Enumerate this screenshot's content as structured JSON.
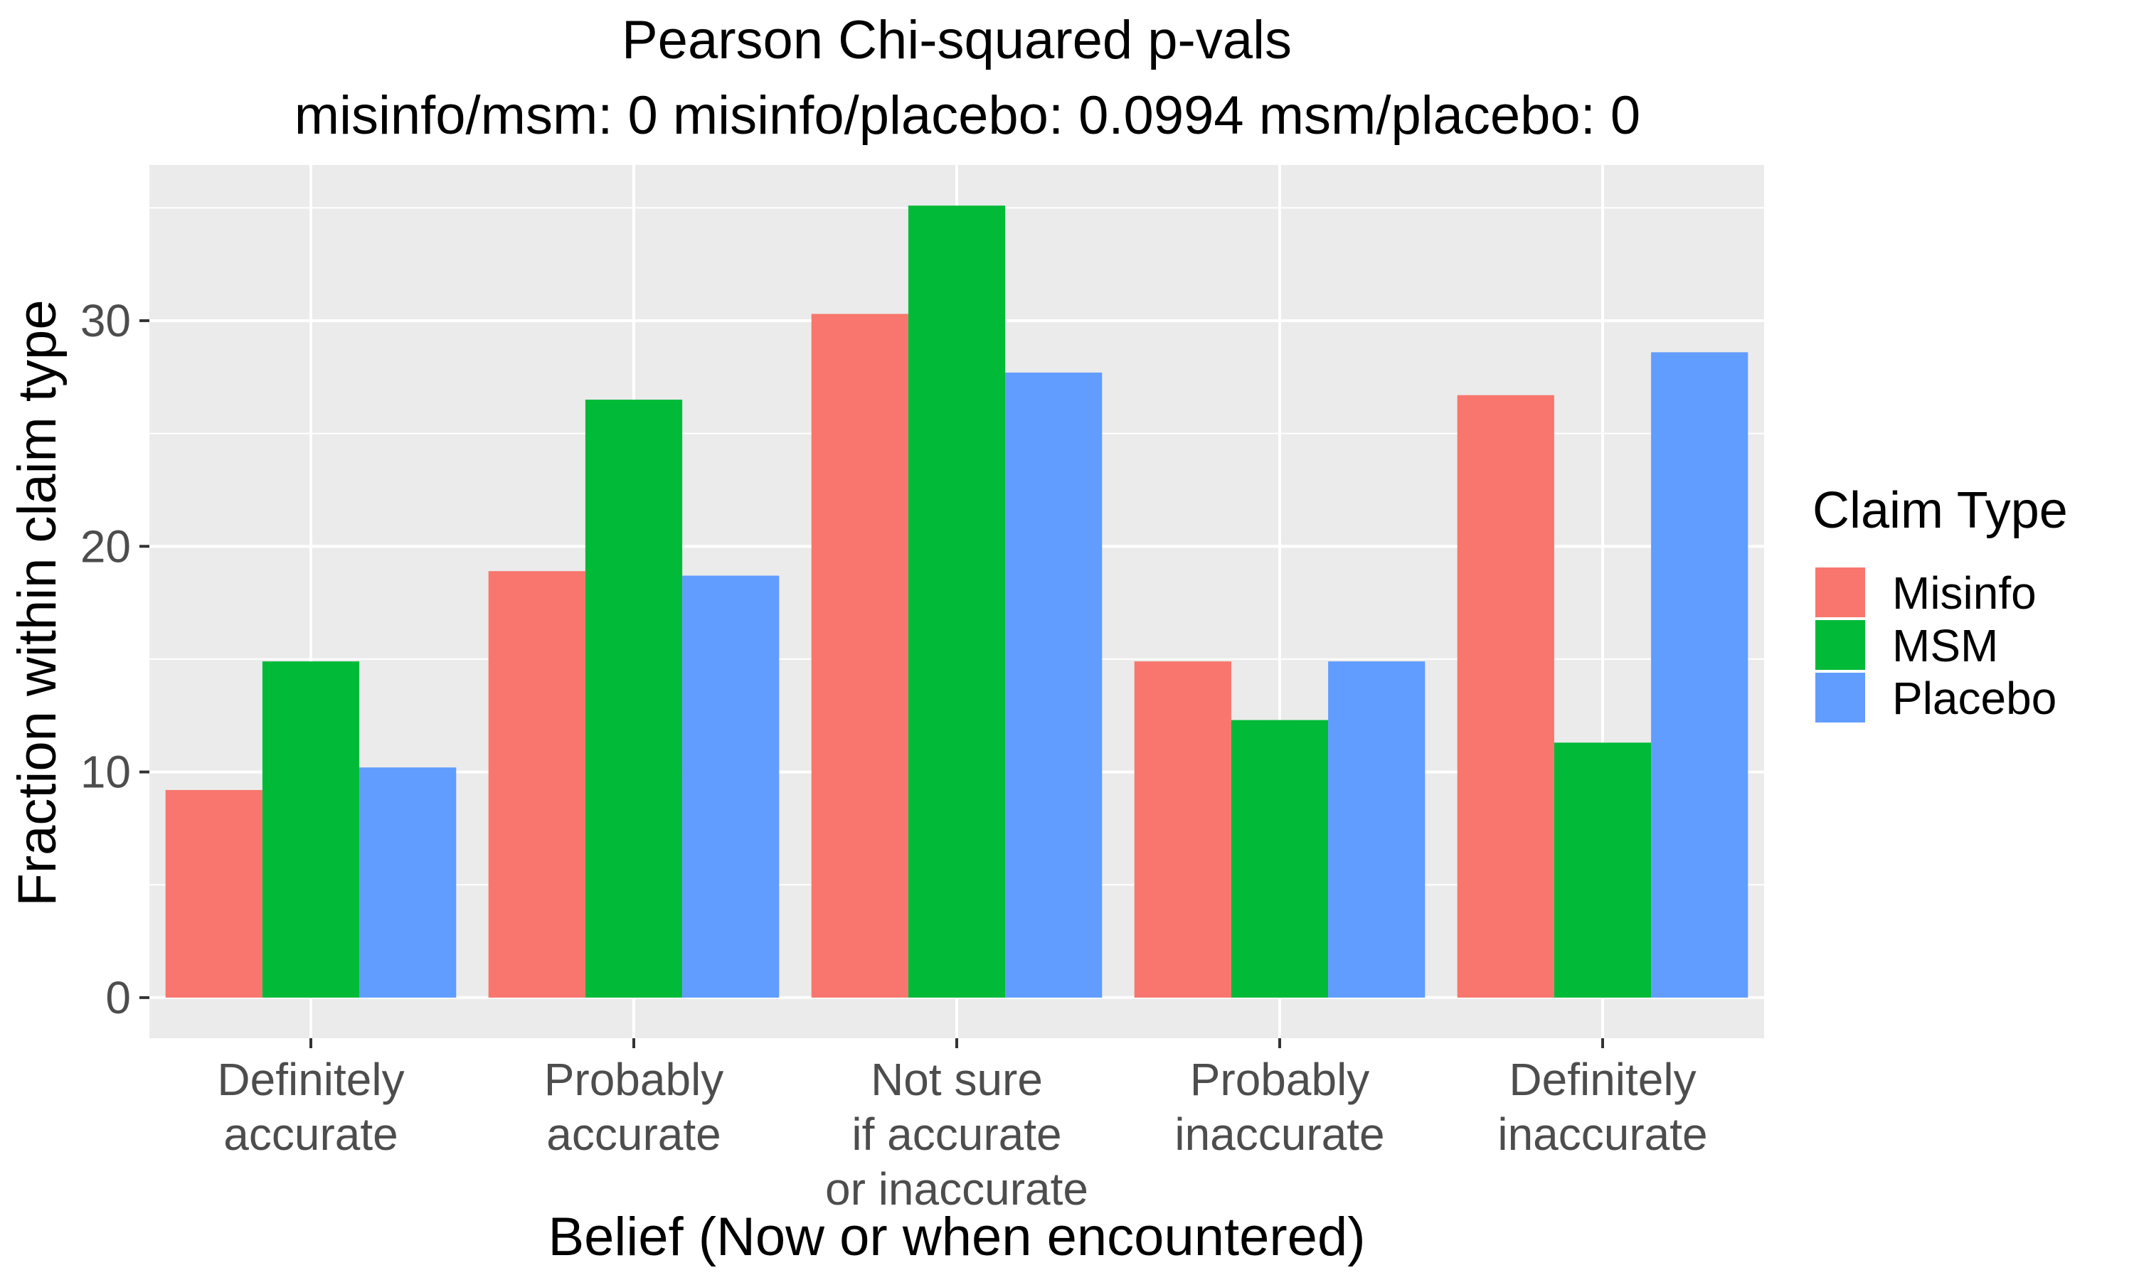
{
  "chart_data": {
    "type": "bar",
    "title_line1": "Pearson Chi-squared p-vals",
    "title_line2": "misinfo/msm: 0 misinfo/placebo: 0.0994 msm/placebo: 0",
    "xlabel": "Belief (Now or when encountered)",
    "ylabel": "Fraction within claim type",
    "categories": [
      [
        "Definitely",
        "accurate"
      ],
      [
        "Probably",
        "accurate"
      ],
      [
        "Not sure",
        "if accurate",
        "or inaccurate"
      ],
      [
        "Probably",
        "inaccurate"
      ],
      [
        "Definitely",
        "inaccurate"
      ]
    ],
    "series": [
      {
        "name": "Misinfo",
        "color": "#F8766D",
        "values": [
          9.2,
          18.9,
          30.3,
          14.9,
          26.7
        ]
      },
      {
        "name": "MSM",
        "color": "#00BA38",
        "values": [
          14.9,
          26.5,
          35.1,
          12.3,
          11.3
        ]
      },
      {
        "name": "Placebo",
        "color": "#619CFF",
        "values": [
          10.2,
          18.7,
          27.7,
          14.9,
          28.6
        ]
      }
    ],
    "ylim": [
      -1.8,
      36.9
    ],
    "yticks": [
      0,
      10,
      20,
      30
    ],
    "legend_title": "Claim Type",
    "legend_position": "right",
    "grid": true,
    "panel_background": "#EBEBEB",
    "grid_color": "#FFFFFF"
  }
}
